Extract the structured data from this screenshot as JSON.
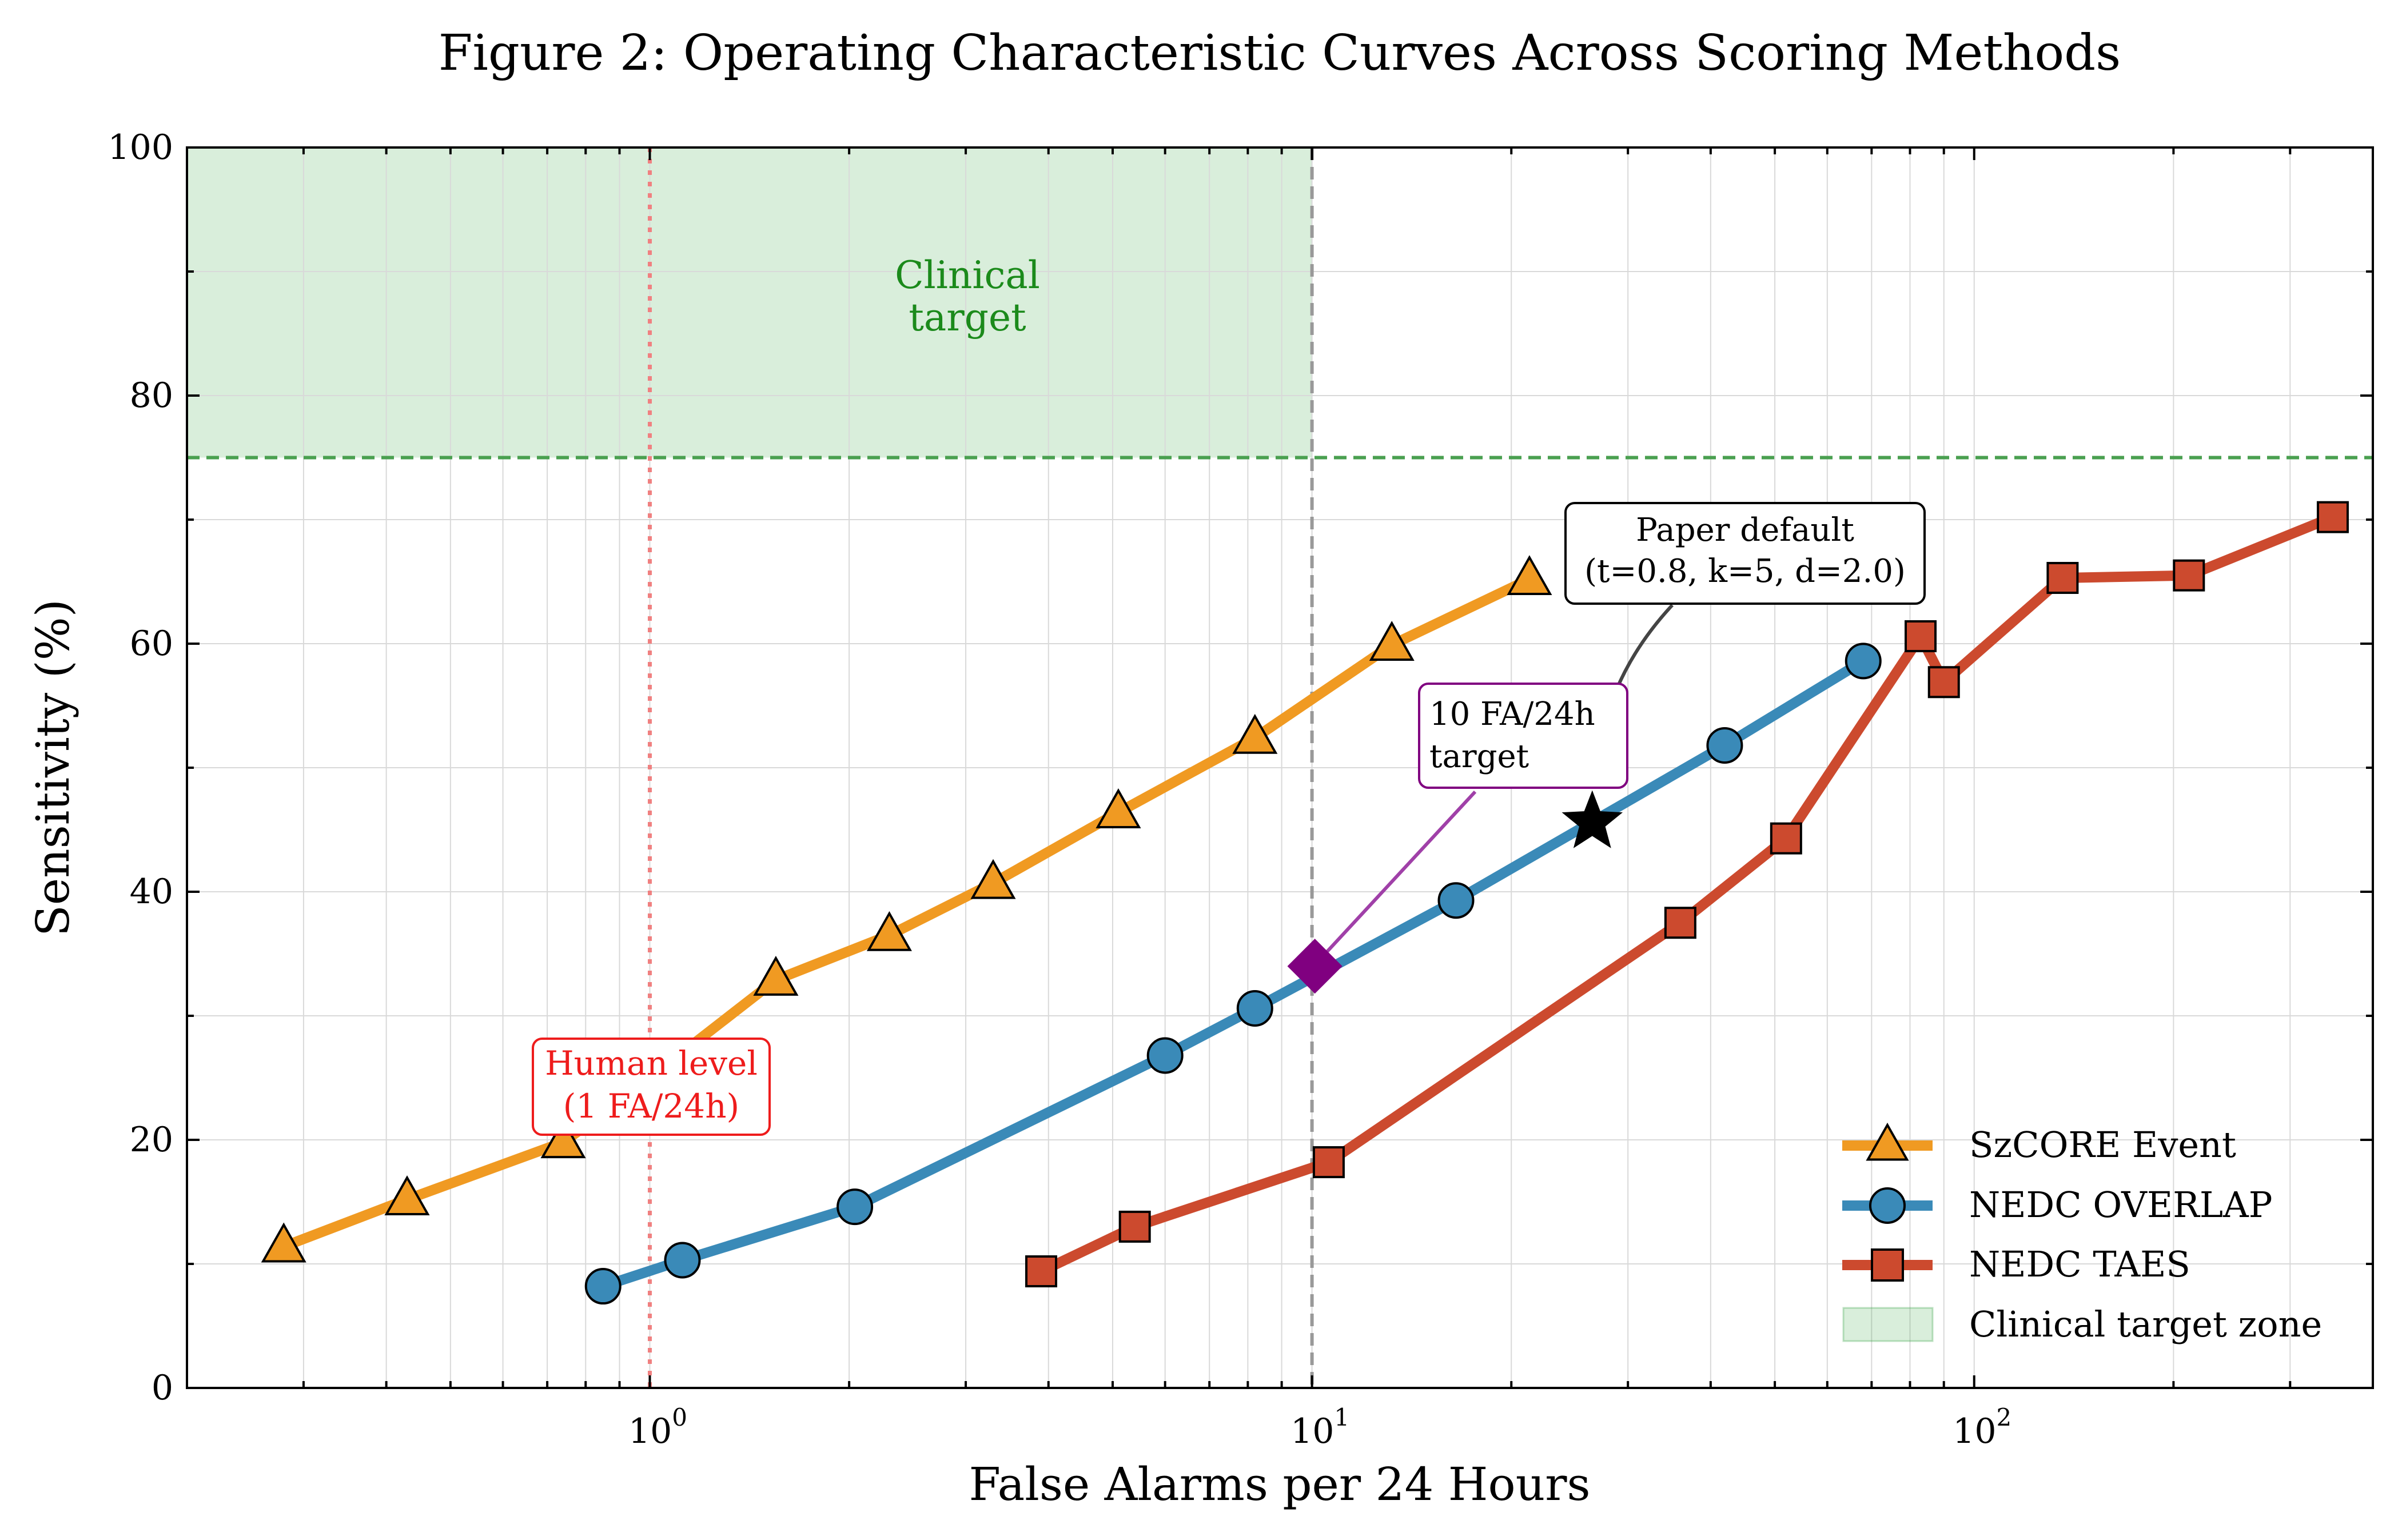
{
  "chart_data": {
    "type": "line",
    "title": "Figure 2: Operating Characteristic Curves Across Scoring Methods",
    "xlabel": "False Alarms per 24 Hours",
    "ylabel": "Sensitivity (%)",
    "xscale": "log",
    "xlim": [
      0.2,
      400
    ],
    "ylim": [
      0,
      100
    ],
    "x_ticks": [
      {
        "value": 1,
        "base": "10",
        "exp": "0"
      },
      {
        "value": 10,
        "base": "10",
        "exp": "1"
      },
      {
        "value": 100,
        "base": "10",
        "exp": "2"
      }
    ],
    "y_ticks": [
      "0",
      "20",
      "40",
      "60",
      "80",
      "100"
    ],
    "grid": true,
    "legend_position": "lower-right",
    "series": [
      {
        "name": "SzCORE Event",
        "color": "#f09a22",
        "marker": "triangle",
        "x": [
          0.28,
          0.43,
          0.74,
          1.0,
          1.55,
          2.3,
          3.3,
          5.1,
          8.2,
          13.2,
          21.3
        ],
        "y": [
          11.4,
          15.2,
          19.8,
          25.0,
          32.9,
          36.5,
          40.7,
          46.4,
          52.4,
          59.9,
          65.2
        ],
        "show_marker": [
          true,
          true,
          true,
          false,
          true,
          true,
          true,
          true,
          true,
          true,
          true
        ]
      },
      {
        "name": "NEDC OVERLAP",
        "color": "#3a8ab8",
        "marker": "circle",
        "x": [
          0.85,
          1.12,
          2.04,
          6.0,
          8.2,
          16.5,
          42.0,
          68.0
        ],
        "y": [
          8.2,
          10.3,
          14.6,
          26.8,
          30.6,
          39.3,
          51.8,
          58.6
        ]
      },
      {
        "name": "NEDC TAES",
        "color": "#cc4a2e",
        "marker": "square",
        "x": [
          3.9,
          5.4,
          10.6,
          36.0,
          52.0,
          83.0,
          90.0,
          136.0,
          211.0,
          348.0
        ],
        "y": [
          9.4,
          13.0,
          18.2,
          37.5,
          44.3,
          60.6,
          56.9,
          65.3,
          65.5,
          70.2
        ]
      }
    ],
    "clinical_zone": {
      "legend_label": "Clinical target zone",
      "x_max": 10,
      "y_min": 75,
      "label_line1": "Clinical",
      "label_line2": "target",
      "color": "#2e9e3a"
    },
    "reference_lines": {
      "human_level_x": 1,
      "fa_target_x": 10,
      "sensitivity_target_y": 75
    },
    "annotations": {
      "human_level": {
        "line1": "Human level",
        "line2": "(1 FA/24h)",
        "color": "#ee1c1c"
      },
      "fa_target": {
        "line1": "10 FA/24h",
        "line2": "target",
        "color": "#800080",
        "point_x": 10.1,
        "point_y": 34.0
      },
      "paper_default": {
        "line1": "Paper default",
        "line2": "(t=0.8, k=5, d=2.0)",
        "point_x": 26.5,
        "point_y": 45.6
      }
    }
  }
}
